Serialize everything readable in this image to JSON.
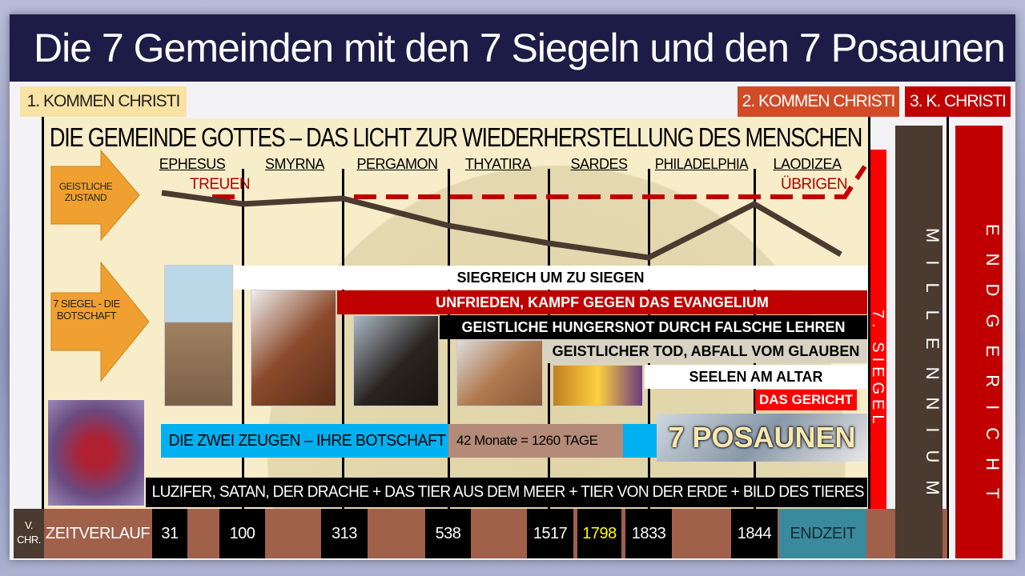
{
  "title": "Die 7 Gemeinden mit den 7 Siegeln und den 7 Posaunen",
  "tags": {
    "first": "1. KOMMEN CHRISTI",
    "second": "2. KOMMEN CHRISTI",
    "third": "3. K. CHRISTI"
  },
  "main_title": "DIE GEMEINDE GOTTES – DAS LICHT ZUR WIEDERHERSTELLUNG DES MENSCHEN",
  "arrows": {
    "state": "GEISTLICHE ZUSTAND",
    "seals": "7 SIEGEL - DIE BOTSCHAFT"
  },
  "churches": [
    "EPHESUS",
    "SMYRNA",
    "PERGAMON",
    "THYATIRA",
    "SARDES",
    "PHILADELPHIA",
    "LAODIZEA"
  ],
  "labels": {
    "faithful": "TREUEN",
    "remnant": "ÜBRIGEN"
  },
  "seals": [
    "SIEGREICH UM ZU SIEGEN",
    "UNFRIEDEN, KAMPF GEGEN DAS EVANGELIUM",
    "GEISTLICHE HUNGERSNOT DURCH FALSCHE LEHREN",
    "GEISTLICHER TOD, ABFALL VOM GLAUBEN",
    "SEELEN AM ALTAR",
    "DAS GERICHT"
  ],
  "witnesses": "DIE ZWEI ZEUGEN – IHRE BOTSCHAFT",
  "months": "42 Monate = 1260 TAGE",
  "trumpets": "7 POSAUNEN",
  "dragon": "LUZIFER, SATAN, DER DRACHE + DAS TIER AUS DEM MEER + TIER VON DER ERDE + BILD DES TIERES",
  "timeline": {
    "bc": "V. CHR.",
    "label": "ZEITVERLAUF",
    "years": [
      "31",
      "100",
      "313",
      "538",
      "1517",
      "1798",
      "1833",
      "1844"
    ],
    "end": "ENDZEIT",
    "highlight_color": "#ffff00"
  },
  "columns": {
    "seventh_seal": "7. SIEGEL",
    "millennium": "MILLENNIUM",
    "judgment": "ENDGERICHT"
  },
  "colors": {
    "title_bg": "#1c1c46",
    "red": "#c00000",
    "brown": "#a0604a",
    "blue": "#00b0f0",
    "orange": "#f0a030"
  }
}
